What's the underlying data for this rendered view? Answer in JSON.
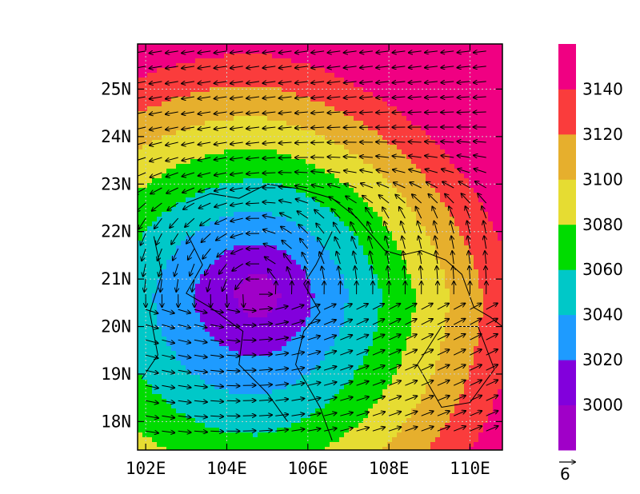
{
  "chart_data": {
    "type": "heatmap",
    "title": "",
    "overlay": "wind vectors",
    "x_axis": {
      "range": [
        101.8,
        110.8
      ],
      "ticks": [
        102,
        104,
        106,
        108,
        110
      ],
      "tick_labels": [
        "102E",
        "104E",
        "106E",
        "108E",
        "110E"
      ]
    },
    "y_axis": {
      "range": [
        17.4,
        25.95
      ],
      "ticks": [
        18,
        19,
        20,
        21,
        22,
        23,
        24,
        25
      ],
      "tick_labels": [
        "18N",
        "19N",
        "20N",
        "21N",
        "22N",
        "23N",
        "24N",
        "25N"
      ]
    },
    "grid": "dotted",
    "colorbar": {
      "position": "right",
      "levels": [
        2980,
        3000,
        3020,
        3040,
        3060,
        3080,
        3100,
        3120,
        3140,
        3160
      ],
      "colors": [
        "#a000c8",
        "#8200dc",
        "#1e9bff",
        "#00c8c8",
        "#00dc00",
        "#e6dc32",
        "#e6af2d",
        "#fa3c3c",
        "#f00082"
      ],
      "labels": [
        "3000",
        "3020",
        "3040",
        "3060",
        "3080",
        "3100",
        "3120",
        "3140"
      ]
    },
    "field": {
      "description": "low centered near 104.8E 20.7N, increasing outward toward northeast",
      "center": [
        104.8,
        20.7
      ],
      "center_value": 2988,
      "outer_value": 3140
    },
    "vector_reference": {
      "label": "6",
      "magnitude": 6
    }
  }
}
